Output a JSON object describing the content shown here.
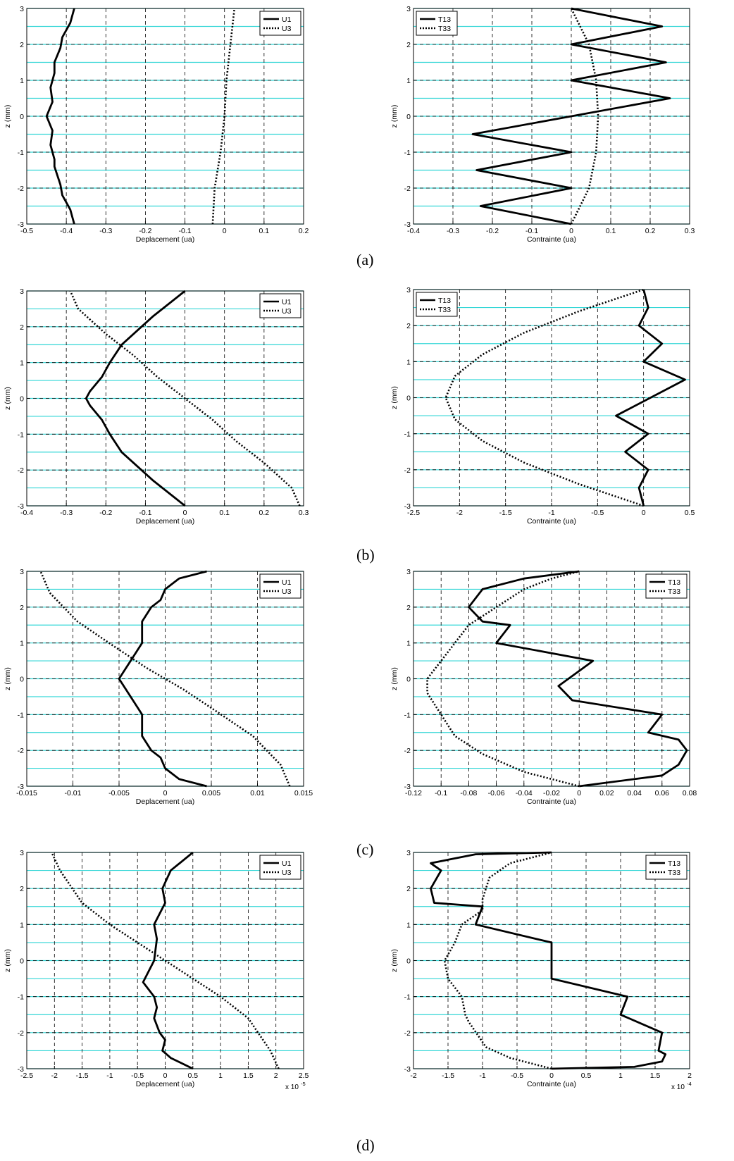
{
  "figure": {
    "row_labels": [
      "(a)",
      "(b)",
      "(c)",
      "(d)"
    ]
  },
  "colors": {
    "layer_lines": "#33d6d6",
    "curves": "#000000",
    "dashed_grid": "#000000"
  },
  "chart_data": [
    {
      "id": "a-displacement",
      "type": "line",
      "xlabel": "Deplacement (ua)",
      "ylabel": "z (mm)",
      "xlim": [
        -0.5,
        0.2
      ],
      "ylim": [
        -3,
        3
      ],
      "xticks": [
        -0.5,
        -0.4,
        -0.3,
        -0.2,
        -0.1,
        0,
        0.1,
        0.2
      ],
      "xtick_labels": [
        "-0.5",
        "-0.4",
        "-0.3",
        "-0.2",
        "-0.1",
        "0",
        "0.1",
        "0.2"
      ],
      "yticks": [
        -3,
        -2,
        -1,
        0,
        1,
        2,
        3
      ],
      "ytick_labels": [
        "-3",
        "-2",
        "-1",
        "0",
        "1",
        "2",
        "3"
      ],
      "legend": "top-right",
      "series": [
        {
          "name": "U1",
          "style": "solid",
          "x": [
            -0.38,
            -0.39,
            -0.41,
            -0.415,
            -0.43,
            -0.43,
            -0.44,
            -0.435,
            -0.45,
            -0.435,
            -0.44,
            -0.43,
            -0.43,
            -0.415,
            -0.41,
            -0.39,
            -0.38
          ],
          "y": [
            -3,
            -2.6,
            -2.2,
            -1.9,
            -1.4,
            -1.2,
            -0.8,
            -0.4,
            0,
            0.4,
            0.8,
            1.2,
            1.5,
            1.9,
            2.2,
            2.6,
            3
          ]
        },
        {
          "name": "U3",
          "style": "dotted",
          "x": [
            -0.03,
            -0.025,
            -0.01,
            0,
            0.005,
            0.015,
            0.025
          ],
          "y": [
            -3,
            -2,
            -1,
            0,
            1,
            2,
            3
          ]
        }
      ]
    },
    {
      "id": "a-stress",
      "type": "line",
      "xlabel": "Contrainte (ua)",
      "ylabel": "z (mm)",
      "xlim": [
        -0.4,
        0.3
      ],
      "ylim": [
        -3,
        3
      ],
      "xticks": [
        -0.4,
        -0.3,
        -0.2,
        -0.1,
        0,
        0.1,
        0.2,
        0.3
      ],
      "xtick_labels": [
        "-0.4",
        "-0.3",
        "-0.2",
        "-0.1",
        "0",
        "0.1",
        "0.2",
        "0.3"
      ],
      "yticks": [
        -3,
        -2,
        -1,
        0,
        1,
        2,
        3
      ],
      "ytick_labels": [
        "-3",
        "-2",
        "-1",
        "0",
        "1",
        "2",
        "3"
      ],
      "legend": "top-left",
      "series": [
        {
          "name": "T13",
          "style": "solid",
          "x": [
            0,
            -0.23,
            0,
            -0.24,
            0,
            -0.25,
            0.25,
            0,
            0.24,
            0,
            0.23,
            0
          ],
          "y": [
            -3,
            -2.5,
            -2,
            -1.5,
            -1,
            -0.5,
            0.5,
            1,
            1.5,
            2,
            2.5,
            3
          ]
        },
        {
          "name": "T33",
          "style": "dotted",
          "x": [
            0,
            0.045,
            0.063,
            0.068,
            0.063,
            0.045,
            0
          ],
          "y": [
            -3,
            -2,
            -1,
            0,
            1,
            2,
            3
          ]
        }
      ]
    },
    {
      "id": "b-displacement",
      "type": "line",
      "xlabel": "Deplacement (ua)",
      "ylabel": "z (mm)",
      "xlim": [
        -0.4,
        0.3
      ],
      "ylim": [
        -3,
        3
      ],
      "xticks": [
        -0.4,
        -0.3,
        -0.2,
        -0.1,
        0,
        0.1,
        0.2,
        0.3
      ],
      "xtick_labels": [
        "-0.4",
        "-0.3",
        "-0.2",
        "-0.1",
        "0",
        "0.1",
        "0.2",
        "0.3"
      ],
      "yticks": [
        -3,
        -2,
        -1,
        0,
        1,
        2,
        3
      ],
      "ytick_labels": [
        "-3",
        "-2",
        "-1",
        "0",
        "1",
        "2",
        "3"
      ],
      "legend": "top-right",
      "series": [
        {
          "name": "U1",
          "style": "solid",
          "x": [
            0,
            -0.08,
            -0.16,
            -0.19,
            -0.21,
            -0.24,
            -0.25,
            -0.24,
            -0.21,
            -0.19,
            -0.16,
            -0.08,
            0
          ],
          "y": [
            -3,
            -2.3,
            -1.5,
            -1,
            -0.6,
            -0.2,
            0,
            0.2,
            0.6,
            1,
            1.5,
            2.3,
            3
          ]
        },
        {
          "name": "U3",
          "style": "dotted",
          "x": [
            0.29,
            0.27,
            0.2,
            0.13,
            0.07,
            0,
            -0.07,
            -0.13,
            -0.2,
            -0.27,
            -0.29
          ],
          "y": [
            -3,
            -2.5,
            -1.8,
            -1.2,
            -0.6,
            0,
            0.6,
            1.2,
            1.8,
            2.5,
            3
          ]
        }
      ]
    },
    {
      "id": "b-stress",
      "type": "line",
      "xlabel": "Contrainte (ua)",
      "ylabel": "z (mm)",
      "xlim": [
        -2.5,
        0.5
      ],
      "ylim": [
        -3,
        3
      ],
      "xticks": [
        -2.5,
        -2,
        -1.5,
        -1,
        -0.5,
        0,
        0.5
      ],
      "xtick_labels": [
        "-2.5",
        "-2",
        "-1.5",
        "-1",
        "-0.5",
        "0",
        "0.5"
      ],
      "yticks": [
        -3,
        -2,
        -1,
        0,
        1,
        2,
        3
      ],
      "ytick_labels": [
        "-3",
        "-2",
        "-1",
        "0",
        "1",
        "2",
        "3"
      ],
      "legend": "top-left",
      "series": [
        {
          "name": "T13",
          "style": "solid",
          "x": [
            0,
            -0.05,
            0.05,
            -0.2,
            0.05,
            -0.3,
            0.45,
            0,
            0.2,
            -0.05,
            0.05,
            0
          ],
          "y": [
            -3,
            -2.5,
            -2,
            -1.5,
            -1,
            -0.5,
            0.5,
            1,
            1.5,
            2,
            2.5,
            3
          ]
        },
        {
          "name": "T33",
          "style": "dotted",
          "x": [
            0,
            -0.7,
            -1.3,
            -1.75,
            -2.05,
            -2.15,
            -2.05,
            -1.75,
            -1.3,
            -0.7,
            0
          ],
          "y": [
            -3,
            -2.4,
            -1.8,
            -1.2,
            -0.6,
            0,
            0.6,
            1.2,
            1.8,
            2.4,
            3
          ]
        }
      ]
    },
    {
      "id": "c-displacement",
      "type": "line",
      "xlabel": "Deplacement (ua)",
      "ylabel": "z (mm)",
      "xlim": [
        -0.015,
        0.015
      ],
      "ylim": [
        -3,
        3
      ],
      "xticks": [
        -0.015,
        -0.01,
        -0.005,
        0,
        0.005,
        0.01,
        0.015
      ],
      "xtick_labels": [
        "-0.015",
        "-0.01",
        "-0.005",
        "0",
        "0.005",
        "0.01",
        "0.015"
      ],
      "yticks": [
        -3,
        -2,
        -1,
        0,
        1,
        2,
        3
      ],
      "ytick_labels": [
        "-3",
        "-2",
        "-1",
        "0",
        "1",
        "2",
        "3"
      ],
      "legend": "top-right",
      "series": [
        {
          "name": "U1",
          "style": "solid",
          "x": [
            0.0045,
            0.0015,
            0,
            -0.0005,
            -0.0015,
            -0.0025,
            -0.0025,
            -0.0025,
            -0.0035,
            -0.005,
            -0.0035,
            -0.0025,
            -0.0025,
            -0.0025,
            -0.0015,
            -0.0005,
            0,
            0.0015,
            0.0045
          ],
          "y": [
            -3,
            -2.8,
            -2.5,
            -2.2,
            -2,
            -1.6,
            -1.3,
            -1,
            -0.6,
            0,
            0.6,
            1,
            1.3,
            1.6,
            2,
            2.2,
            2.5,
            2.8,
            3
          ]
        },
        {
          "name": "U3",
          "style": "dotted",
          "x": [
            0.0135,
            0.0125,
            0.0095,
            0.0055,
            0.002,
            0,
            -0.002,
            -0.0055,
            -0.0095,
            -0.0125,
            -0.0135
          ],
          "y": [
            -3,
            -2.4,
            -1.6,
            -0.9,
            -0.3,
            0,
            0.3,
            0.9,
            1.6,
            2.4,
            3
          ]
        }
      ]
    },
    {
      "id": "c-stress",
      "type": "line",
      "xlabel": "Contrainte (ua)",
      "ylabel": "z (mm)",
      "xlim": [
        -0.12,
        0.08
      ],
      "ylim": [
        -3,
        3
      ],
      "xticks": [
        -0.12,
        -0.1,
        -0.08,
        -0.06,
        -0.04,
        -0.02,
        0,
        0.02,
        0.04,
        0.06,
        0.08
      ],
      "xtick_labels": [
        "-0.12",
        "-0.1",
        "-0.08",
        "-0.06",
        "-0.04",
        "-0.02",
        "0",
        "0.02",
        "0.04",
        "0.06",
        "0.08"
      ],
      "yticks": [
        -3,
        -2,
        -1,
        0,
        1,
        2,
        3
      ],
      "ytick_labels": [
        "-3",
        "-2",
        "-1",
        "0",
        "1",
        "2",
        "3"
      ],
      "legend": "top-right",
      "series": [
        {
          "name": "T13",
          "style": "solid",
          "x": [
            0,
            0.06,
            0.072,
            0.078,
            0.072,
            0.05,
            0.06,
            -0.005,
            -0.015,
            0.01,
            -0.06,
            -0.05,
            -0.07,
            -0.08,
            -0.07,
            -0.04,
            0
          ],
          "y": [
            -3,
            -2.7,
            -2.4,
            -2,
            -1.7,
            -1.5,
            -1,
            -0.6,
            -0.2,
            0.5,
            1,
            1.5,
            1.6,
            2,
            2.5,
            2.8,
            3
          ]
        },
        {
          "name": "T33",
          "style": "dotted",
          "x": [
            0,
            -0.04,
            -0.07,
            -0.09,
            -0.1,
            -0.11,
            -0.11,
            -0.1,
            -0.09,
            -0.08,
            -0.06,
            -0.04,
            -0.02,
            0
          ],
          "y": [
            -3,
            -2.6,
            -2.1,
            -1.6,
            -1,
            -0.4,
            0,
            0.5,
            1,
            1.5,
            2,
            2.5,
            2.8,
            3
          ]
        }
      ]
    },
    {
      "id": "d-displacement",
      "type": "line",
      "xlabel": "Deplacement (ua)",
      "ylabel": "z (mm)",
      "xlim": [
        -2.5,
        2.5
      ],
      "ylim": [
        -3,
        3
      ],
      "xticks": [
        -2.5,
        -2,
        -1.5,
        -1,
        -0.5,
        0,
        0.5,
        1,
        1.5,
        2,
        2.5
      ],
      "xtick_labels": [
        "-2.5",
        "-2",
        "-1.5",
        "-1",
        "-0.5",
        "0",
        "0.5",
        "1",
        "1.5",
        "2",
        "2.5"
      ],
      "x_multiplier": "x 10",
      "x_multiplier_exp": "-5",
      "yticks": [
        -3,
        -2,
        -1,
        0,
        1,
        2,
        3
      ],
      "ytick_labels": [
        "-3",
        "-2",
        "-1",
        "0",
        "1",
        "2",
        "3"
      ],
      "legend": "top-right",
      "series": [
        {
          "name": "U1",
          "style": "solid",
          "x": [
            0.5,
            0.1,
            -0.05,
            0,
            -0.1,
            -0.2,
            -0.15,
            -0.2,
            -0.4,
            -0.2,
            -0.15,
            -0.2,
            -0.1,
            0,
            -0.05,
            0.1,
            0.5
          ],
          "y": [
            -3,
            -2.7,
            -2.5,
            -2.2,
            -2,
            -1.6,
            -1.3,
            -1,
            -0.6,
            0,
            0.6,
            1,
            1.3,
            1.6,
            2,
            2.5,
            3
          ]
        },
        {
          "name": "U3",
          "style": "dotted",
          "x": [
            2.05,
            1.9,
            1.5,
            1,
            0.5,
            0,
            -0.5,
            -1,
            -1.5,
            -1.9,
            -2.05
          ],
          "y": [
            -3,
            -2.5,
            -1.6,
            -1,
            -0.5,
            0,
            0.5,
            1,
            1.6,
            2.5,
            3
          ]
        }
      ]
    },
    {
      "id": "d-stress",
      "type": "line",
      "xlabel": "Contrainte (ua)",
      "ylabel": "z (mm)",
      "xlim": [
        -2,
        2
      ],
      "ylim": [
        -3,
        3
      ],
      "xticks": [
        -2,
        -1.5,
        -1,
        -0.5,
        0,
        0.5,
        1,
        1.5,
        2
      ],
      "xtick_labels": [
        "-2",
        "-1.5",
        "-1",
        "-0.5",
        "0",
        "0.5",
        "1",
        "1.5",
        "2"
      ],
      "x_multiplier": "x 10",
      "x_multiplier_exp": "-4",
      "yticks": [
        -3,
        -2,
        -1,
        0,
        1,
        2,
        3
      ],
      "ytick_labels": [
        "-3",
        "-2",
        "-1",
        "0",
        "1",
        "2",
        "3"
      ],
      "legend": "top-right",
      "series": [
        {
          "name": "T13",
          "style": "solid",
          "x": [
            0,
            1.2,
            1.6,
            1.65,
            1.55,
            1.6,
            1,
            1.1,
            0,
            0,
            0,
            0,
            -1.1,
            -1,
            -1.7,
            -1.75,
            -1.6,
            -1.75,
            -1.1,
            0
          ],
          "y": [
            -3,
            -2.95,
            -2.8,
            -2.6,
            -2.5,
            -2,
            -1.5,
            -1,
            -0.5,
            0,
            0.5,
            0.5,
            1,
            1.5,
            1.6,
            2,
            2.5,
            2.7,
            2.95,
            3
          ]
        },
        {
          "name": "T33",
          "style": "dotted",
          "x": [
            0,
            -0.6,
            -0.95,
            -1.2,
            -1.25,
            -1.3,
            -1.5,
            -1.55,
            -1.4,
            -1.3,
            -1,
            -1,
            -0.9,
            -0.6,
            0
          ],
          "y": [
            -3,
            -2.7,
            -2.4,
            -1.7,
            -1.5,
            -1,
            -0.5,
            0,
            0.5,
            1,
            1.4,
            1.7,
            2.3,
            2.7,
            3
          ]
        }
      ]
    }
  ]
}
